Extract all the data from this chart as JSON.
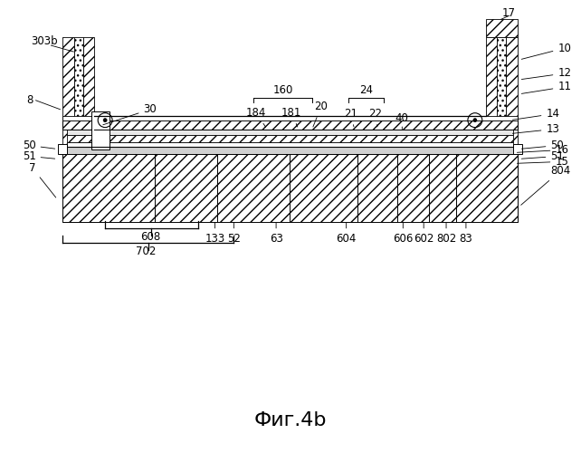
{
  "bg_color": "#ffffff",
  "title": "Фиг.4b",
  "title_fontsize": 16,
  "fig_width": 6.42,
  "fig_height": 5.0
}
